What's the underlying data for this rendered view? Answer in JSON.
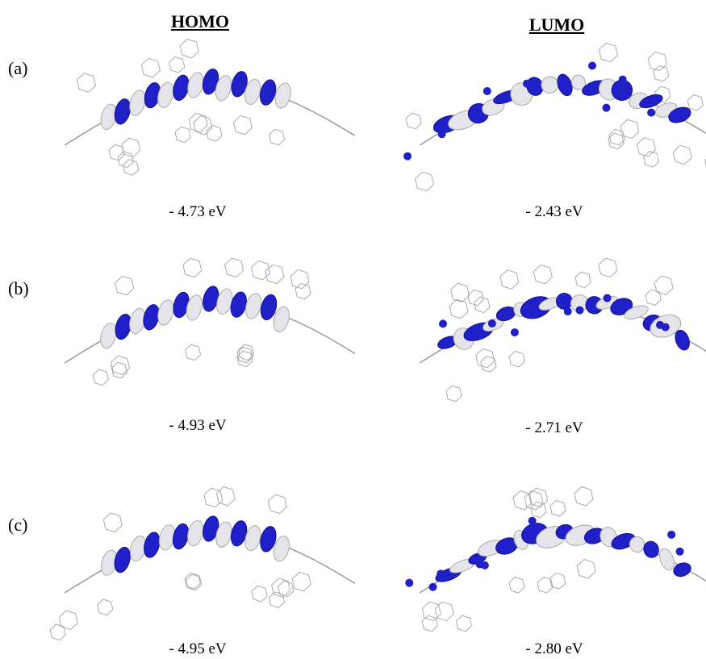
{
  "columns": [
    "HOMO",
    "LUMO"
  ],
  "rows": [
    {
      "label": "(a)",
      "homo": "- 4.73 eV",
      "lumo": "- 2.43 eV"
    },
    {
      "label": "(b)",
      "homo": "- 4.93 eV",
      "lumo": "- 2.71 eV"
    },
    {
      "label": "(c)",
      "homo": "- 4.95 eV",
      "lumo": "- 2.80 eV"
    }
  ]
}
